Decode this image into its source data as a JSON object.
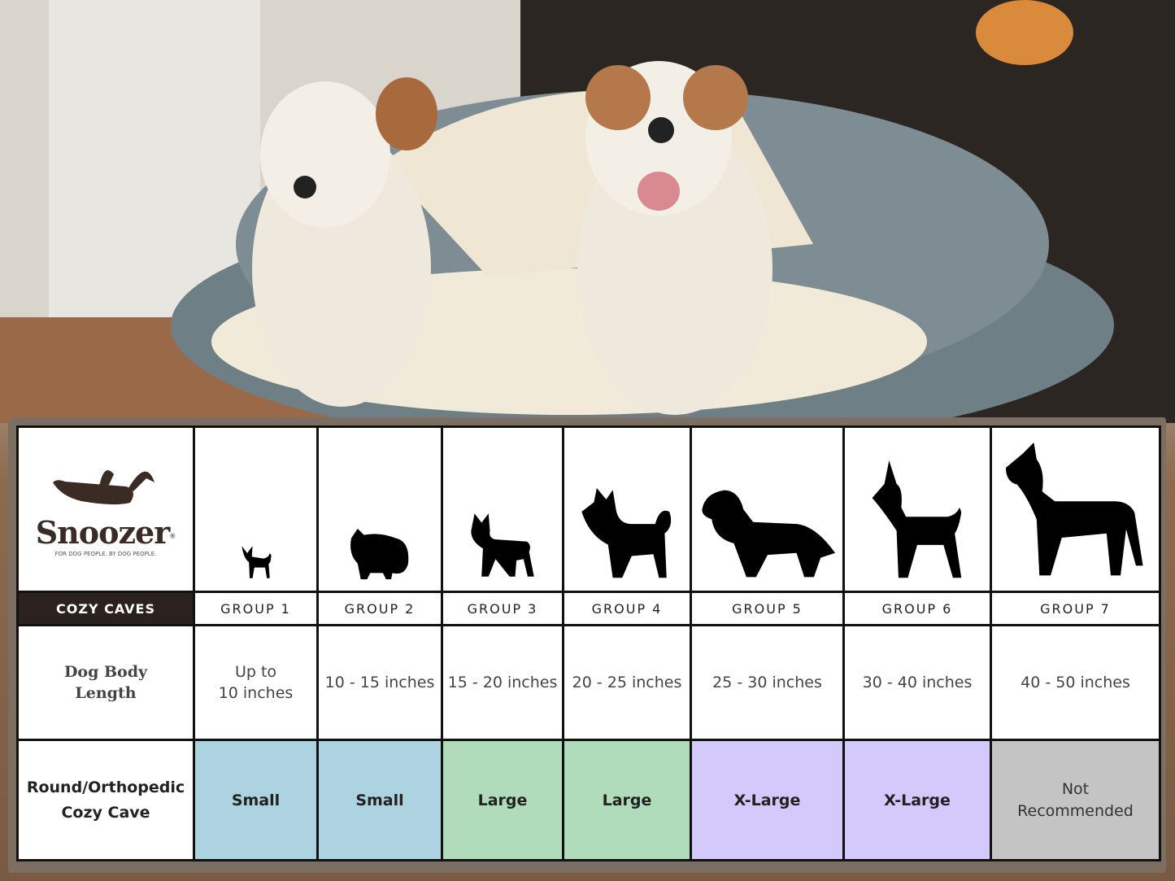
{
  "brand": {
    "name": "Snoozer",
    "tagline": "FOR DOG PEOPLE. BY DOG PEOPLE.",
    "registered": "®"
  },
  "table": {
    "product_header": "COZY CAVES",
    "groups": [
      {
        "label": "GROUP 1",
        "length": "Up to 10 inches",
        "length_lines": [
          "Up to",
          "10 inches"
        ],
        "size": "Small",
        "color": "#aed3e0",
        "icon": "chihuahua-silhouette-icon"
      },
      {
        "label": "GROUP 2",
        "length": "10 - 15 inches",
        "size": "Small",
        "color": "#aed3e0",
        "icon": "pomeranian-silhouette-icon"
      },
      {
        "label": "GROUP 3",
        "length": "15 - 20 inches",
        "size": "Large",
        "color": "#b0dcbc",
        "icon": "boston-terrier-silhouette-icon"
      },
      {
        "label": "GROUP 4",
        "length": "20 - 25 inches",
        "size": "Large",
        "color": "#b0dcbc",
        "icon": "shiba-silhouette-icon"
      },
      {
        "label": "GROUP 5",
        "length": "25 - 30 inches",
        "size": "X-Large",
        "color": "#d4c9fb",
        "icon": "golden-retriever-silhouette-icon"
      },
      {
        "label": "GROUP 6",
        "length": "30 - 40 inches",
        "size": "X-Large",
        "color": "#d4c9fb",
        "icon": "doberman-silhouette-icon"
      },
      {
        "label": "GROUP 7",
        "length": "40 - 50 inches",
        "size": "Not Recommended",
        "size_lines": [
          "Not",
          "Recommended"
        ],
        "color": "#c4c4c4",
        "icon": "great-dane-silhouette-icon"
      }
    ],
    "row_labels": {
      "length_lines": [
        "Dog Body",
        "Length"
      ],
      "cave_lines": [
        "Round/Orthopedic",
        "Cozy Cave"
      ]
    }
  }
}
